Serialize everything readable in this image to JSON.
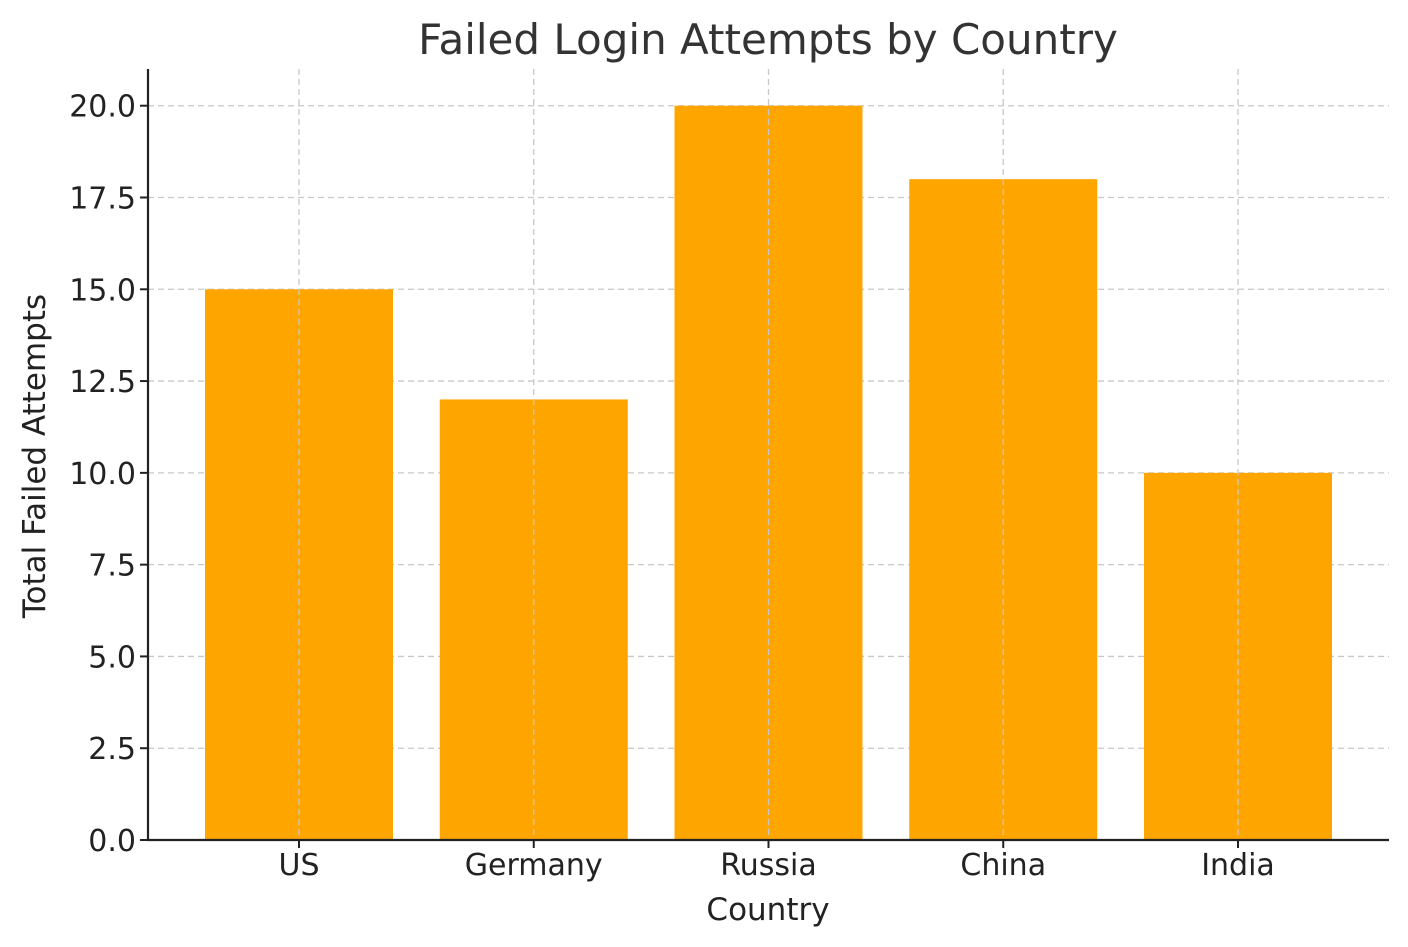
{
  "chart_data": {
    "type": "bar",
    "title": "Failed Login Attempts by Country",
    "xlabel": "Country",
    "ylabel": "Total Failed Attempts",
    "categories": [
      "US",
      "Germany",
      "Russia",
      "China",
      "India"
    ],
    "values": [
      15,
      12,
      20,
      18,
      10
    ],
    "ylim": [
      0,
      21
    ],
    "yticks": [
      "0.0",
      "2.5",
      "5.0",
      "7.5",
      "10.0",
      "12.5",
      "15.0",
      "17.5",
      "20.0"
    ],
    "grid": true,
    "bar_color": "#FFA500",
    "grid_color": "#c8c8c8"
  }
}
